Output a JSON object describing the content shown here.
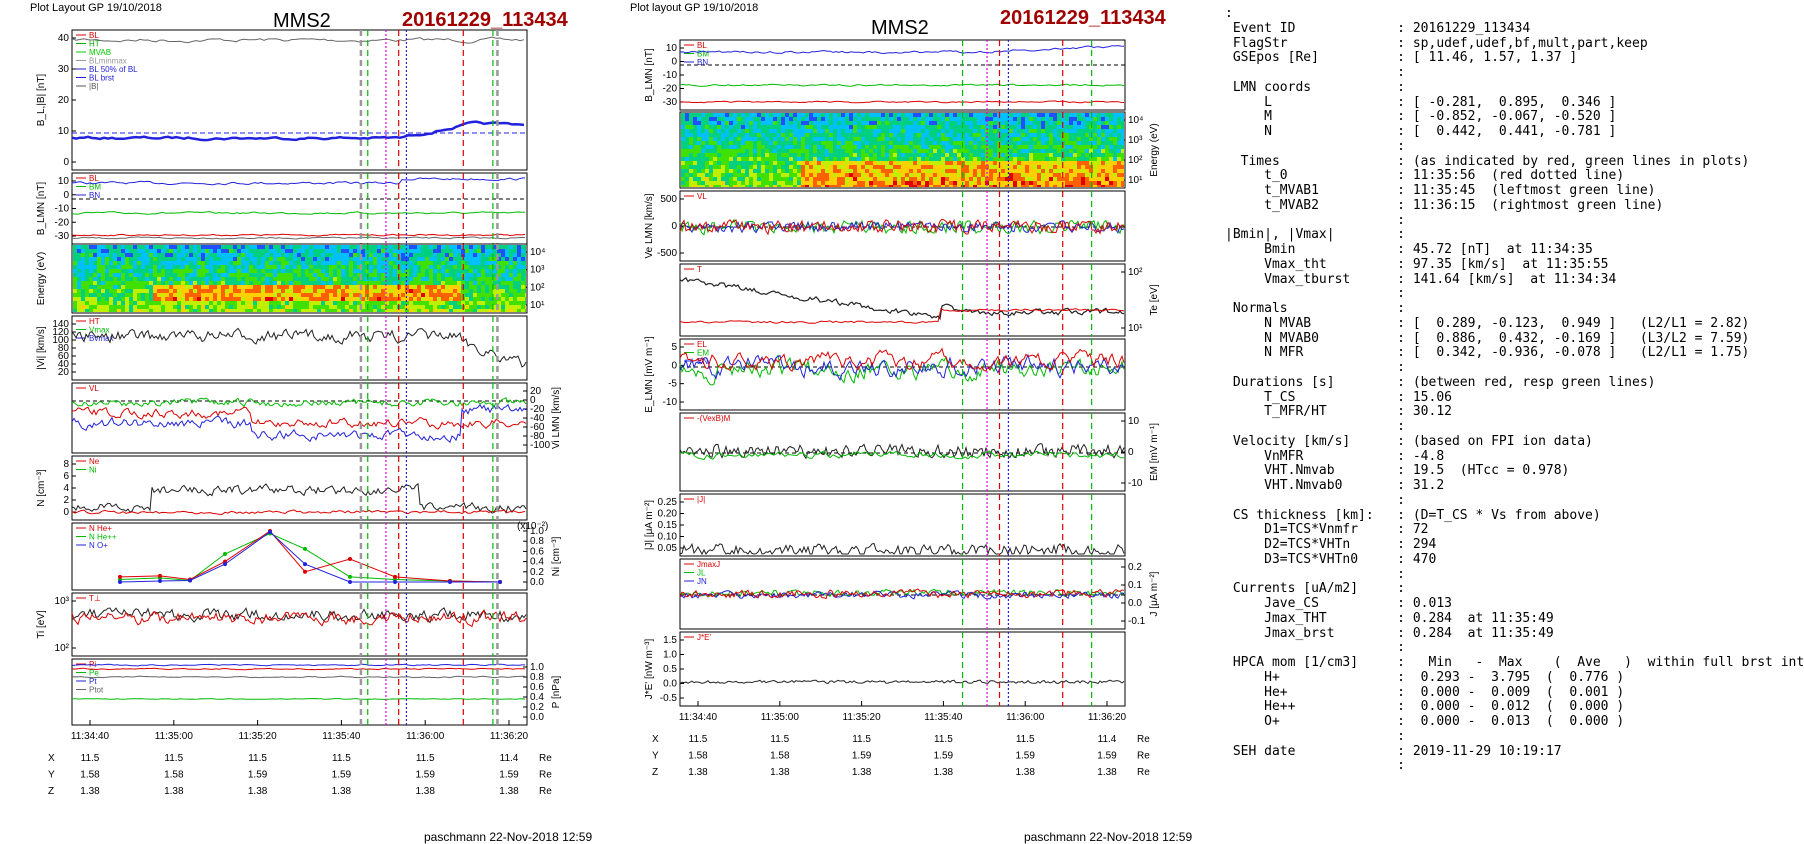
{
  "left": {
    "header": "Plot Layout GP 19/10/2018",
    "title": "MMS2",
    "event": "20161229_113434",
    "credit": "paschmann 22-Nov-2018 12:59",
    "panels": [
      {
        "ylabel": "B_L,|B| [nT]",
        "ylim": [
          0,
          45
        ],
        "yticks": [
          "40",
          "30",
          "20",
          "10",
          "0"
        ],
        "legend": [
          "BL",
          "HT",
          "MVAB",
          "BLminmax",
          "BL 50% of BL",
          "BL brst",
          "|B|"
        ],
        "legend_colors": [
          "#dd0000",
          "#00aa00",
          "#00cc00",
          "#999999",
          "#2222dd",
          "#2222dd",
          "#555555"
        ]
      },
      {
        "ylabel": "B_LMN [nT]",
        "yticks": [
          "10",
          "0",
          "-10",
          "-20",
          "-30"
        ],
        "labels": [
          "BL",
          "BM",
          "BN"
        ]
      },
      {
        "ylabel": "Energy (eV)",
        "yticks_right": [
          "10⁴",
          "10³",
          "10²",
          "10¹"
        ]
      },
      {
        "ylabel": "|Vi| [km/s]",
        "yticks": [
          "140",
          "120",
          "100",
          "80",
          "60",
          "40",
          "20"
        ],
        "legend": [
          "HT",
          "Vmax",
          "Bvmax"
        ]
      },
      {
        "ylabel_right": "Vi LMN [km/s]",
        "yticks_right": [
          "20",
          "0",
          "-20",
          "-40",
          "-60",
          "-80",
          "-100"
        ],
        "labels": [
          "VL"
        ]
      },
      {
        "ylabel": "N [cm⁻³]",
        "yticks": [
          "8",
          "6",
          "4",
          "2",
          "0"
        ],
        "legend": [
          "Ne",
          "Ni"
        ]
      },
      {
        "ylabel_right": "Ni [cm⁻³]",
        "scale": "(x10⁻²)",
        "yticks_right": [
          "1.0",
          "0.8",
          "0.6",
          "0.4",
          "0.2",
          "0.0"
        ],
        "legend": [
          "N He+",
          "N He++",
          "N O+"
        ]
      },
      {
        "ylabel": "Ti [eV]",
        "yticks": [
          "10³",
          "10²"
        ],
        "labels": [
          "T⊥"
        ]
      },
      {
        "ylabel_right": "P [nPa]",
        "yticks_right": [
          "1.0",
          "0.8",
          "0.6",
          "0.4",
          "0.2",
          "0.0"
        ],
        "legend": [
          "Pi",
          "Pe",
          "Pt",
          "Ptot"
        ]
      }
    ],
    "xticks": [
      "11:34:40",
      "11:35:00",
      "11:35:20",
      "11:35:40",
      "11:36:00",
      "11:36:20"
    ],
    "pos_rows": [
      {
        "label": "X",
        "values": [
          "11.5",
          "11.5",
          "11.5",
          "11.5",
          "11.5",
          "11.4"
        ],
        "unit": "Re"
      },
      {
        "label": "Y",
        "values": [
          "1.58",
          "1.58",
          "1.59",
          "1.59",
          "1.59",
          "1.59"
        ],
        "unit": "Re"
      },
      {
        "label": "Z",
        "values": [
          "1.38",
          "1.38",
          "1.38",
          "1.38",
          "1.38",
          "1.38"
        ],
        "unit": "Re"
      }
    ]
  },
  "right": {
    "header": "Plot layout GP 19/10/2018",
    "title": "MMS2",
    "event": "20161229_113434",
    "credit": "paschmann 22-Nov-2018 12:59",
    "panels": [
      {
        "ylabel": "B_LMN [nT]",
        "yticks": [
          "10",
          "0",
          "-10",
          "-20",
          "-30"
        ],
        "labels": [
          "BL",
          "BM",
          "BN"
        ]
      },
      {
        "ylabel_right": "Energy (eV)",
        "yticks_right": [
          "10⁴",
          "10³",
          "10²",
          "10¹"
        ]
      },
      {
        "ylabel": "Ve LMN [km/s]",
        "yticks": [
          "500",
          "0",
          "-500"
        ],
        "labels": [
          "VL"
        ]
      },
      {
        "ylabel_right": "Te [eV]",
        "yticks_right": [
          "10²",
          "10¹"
        ],
        "labels": [
          "T"
        ]
      },
      {
        "ylabel": "E_LMN [mV m⁻¹]",
        "yticks": [
          "5",
          "0",
          "-5",
          "-10"
        ],
        "legend": [
          "EL",
          "EM",
          "EN"
        ]
      },
      {
        "ylabel_right": "EM [mV m⁻¹]",
        "yticks_right": [
          "10",
          "0",
          "-10"
        ],
        "legend": [
          "-(VexB)M"
        ]
      },
      {
        "ylabel": "|J| [μA m⁻²]",
        "yticks": [
          "0.25",
          "0.20",
          "0.15",
          "0.10",
          "0.05"
        ],
        "legend": [
          "|J|"
        ]
      },
      {
        "ylabel_right": "J [μA m⁻²]",
        "yticks_right": [
          "0.2",
          "0.1",
          "0.0",
          "-0.1"
        ],
        "legend": [
          "JmaxJ",
          "JL",
          "JN"
        ]
      },
      {
        "ylabel": "J*E' [nW m⁻³]",
        "yticks": [
          "1.5",
          "1.0",
          "0.5",
          "0.0",
          "-0.5"
        ],
        "legend": [
          "J*E'"
        ]
      }
    ],
    "xticks": [
      "11:34:40",
      "11:35:00",
      "11:35:20",
      "11:35:40",
      "11:36:00",
      "11:36:20"
    ],
    "pos_rows": [
      {
        "label": "X",
        "values": [
          "11.5",
          "11.5",
          "11.5",
          "11.5",
          "11.5",
          "11.4"
        ],
        "unit": "Re"
      },
      {
        "label": "Y",
        "values": [
          "1.58",
          "1.58",
          "1.59",
          "1.59",
          "1.59",
          "1.59"
        ],
        "unit": "Re"
      },
      {
        "label": "Z",
        "values": [
          "1.38",
          "1.38",
          "1.38",
          "1.38",
          "1.38",
          "1.38"
        ],
        "unit": "Re"
      }
    ]
  },
  "info_lines": [
    ":",
    " Event ID             : 20161229_113434",
    " FlagStr              : sp,udef,udef,bf,mult,part,keep",
    " GSEpos [Re]          : [ 11.46, 1.57, 1.37 ]",
    "                      :",
    " LMN coords           :",
    "     L                : [ -0.281,  0.895,  0.346 ]",
    "     M                : [ -0.852, -0.067, -0.520 ]",
    "     N                : [  0.442,  0.441, -0.781 ]",
    "                      :",
    "  Times               : (as indicated by red, green lines in plots)",
    "     t_0              : 11:35:56  (red dotted line)",
    "     t_MVAB1          : 11:35:45  (leftmost green line)",
    "     t_MVAB2          : 11:36:15  (rightmost green line)",
    "                      :",
    "|Bmin|, |Vmax|        :",
    "     Bmin             : 45.72 [nT]  at 11:34:35",
    "     Vmax_tht         : 97.35 [km/s]  at 11:35:55",
    "     Vmax_tburst      : 141.64 [km/s]  at 11:34:34",
    "                      :",
    " Normals              :",
    "     N MVAB           : [  0.289, -0.123,  0.949 ]   (L2/L1 = 2.82)",
    "     N MVAB0          : [  0.886,  0.432, -0.169 ]   (L3/L2 = 7.59)",
    "     N MFR            : [  0.342, -0.936, -0.078 ]   (L2/L1 = 1.75)",
    "                      :",
    " Durations [s]        : (between red, resp green lines)",
    "     T_CS             : 15.06",
    "     T_MFR/HT         : 30.12",
    "                      :",
    " Velocity [km/s]      : (based on FPI ion data)",
    "     VnMFR            : -4.8",
    "     VHT.Nmvab        : 19.5  (HTcc = 0.978)",
    "     VHT.Nmvab0       : 31.2",
    "                      :",
    " CS thickness [km]:   : (D=T_CS * Vs from above)",
    "     D1=TCS*Vnmfr     : 72",
    "     D2=TCS*VHTn      : 294",
    "     D3=TCS*VHTn0     : 470",
    "                      :",
    " Currents [uA/m2]     :",
    "     Jave_CS          : 0.013",
    "     Jmax_THT         : 0.284  at 11:35:49",
    "     Jmax_brst        : 0.284  at 11:35:49",
    "                      :",
    " HPCA mom [1/cm3]     :   Min   -  Max    (  Ave   )  within full brst int",
    "     H+               :  0.293 -  3.795  (  0.776 )",
    "     He+              :  0.000 -  0.009  (  0.001 )",
    "     He++             :  0.000 -  0.012  (  0.000 )",
    "     O+               :  0.000 -  0.013  (  0.000 )",
    "                      :",
    " SEH date             : 2019-11-29 10:19:17",
    "                      :"
  ],
  "colors": {
    "red": "#dd0000",
    "green": "#00bb00",
    "blue": "#2222dd",
    "magenta": "#dd00dd",
    "gray": "#666666",
    "black": "#000000",
    "title_red": "#a00000"
  }
}
